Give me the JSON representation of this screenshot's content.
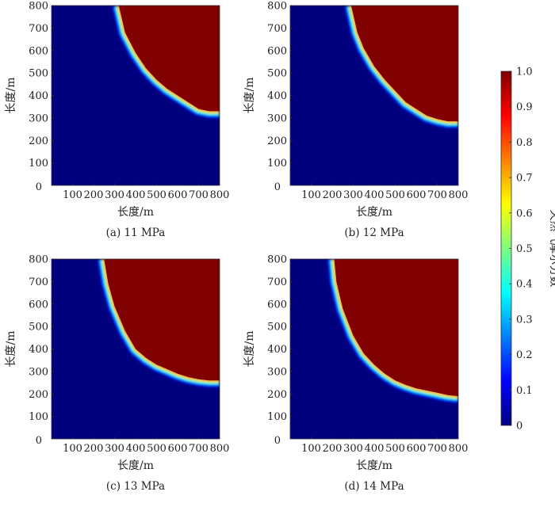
{
  "chart_data": [
    {
      "type": "heatmap",
      "caption": "(a) 11 MPa",
      "xlabel": "长度/m",
      "ylabel": "长度/m",
      "xlim": [
        0,
        800
      ],
      "ylim": [
        0,
        800
      ],
      "xticks": [
        "100",
        "200",
        "300",
        "400",
        "500",
        "600",
        "700",
        "800"
      ],
      "yticks": [
        "100",
        "200",
        "300",
        "400",
        "500",
        "600",
        "700",
        "800"
      ],
      "origin_label": "0",
      "front": {
        "x": [
          320,
          350,
          400,
          450,
          500,
          550,
          600,
          650,
          700,
          750,
          800
        ],
        "y": [
          800,
          680,
          590,
          520,
          470,
          430,
          400,
          370,
          340,
          330,
          330
        ]
      }
    },
    {
      "type": "heatmap",
      "caption": "(b) 12 MPa",
      "xlabel": "长度/m",
      "ylabel": "长度/m",
      "xlim": [
        0,
        800
      ],
      "ylim": [
        0,
        800
      ],
      "xticks": [
        "100",
        "200",
        "300",
        "400",
        "500",
        "600",
        "700",
        "800"
      ],
      "yticks": [
        "100",
        "200",
        "300",
        "400",
        "500",
        "600",
        "700",
        "800"
      ],
      "origin_label": "0",
      "front": {
        "x": [
          290,
          320,
          350,
          400,
          450,
          500,
          550,
          600,
          650,
          700,
          750,
          800
        ],
        "y": [
          800,
          680,
          610,
          530,
          470,
          420,
          370,
          340,
          310,
          295,
          285,
          285
        ]
      }
    },
    {
      "type": "heatmap",
      "caption": "(c) 13 MPa",
      "xlabel": "长度/m",
      "ylabel": "长度/m",
      "xlim": [
        0,
        800
      ],
      "ylim": [
        0,
        800
      ],
      "xticks": [
        "100",
        "200",
        "300",
        "400",
        "500",
        "600",
        "700",
        "800"
      ],
      "yticks": [
        "100",
        "200",
        "300",
        "400",
        "500",
        "600",
        "700",
        "800"
      ],
      "origin_label": "0",
      "front": {
        "x": [
          250,
          270,
          300,
          350,
          400,
          450,
          500,
          550,
          600,
          650,
          700,
          750,
          800
        ],
        "y": [
          800,
          690,
          590,
          480,
          400,
          360,
          330,
          310,
          290,
          275,
          265,
          260,
          260
        ]
      }
    },
    {
      "type": "heatmap",
      "caption": "(d) 14 MPa",
      "xlabel": "长度/m",
      "ylabel": "长度/m",
      "xlim": [
        0,
        800
      ],
      "ylim": [
        0,
        800
      ],
      "xticks": [
        "100",
        "200",
        "300",
        "400",
        "500",
        "600",
        "700",
        "800"
      ],
      "yticks": [
        "100",
        "200",
        "300",
        "400",
        "500",
        "600",
        "700",
        "800"
      ],
      "origin_label": "0",
      "front": {
        "x": [
          210,
          220,
          250,
          300,
          350,
          400,
          450,
          500,
          550,
          600,
          650,
          700,
          750,
          800
        ],
        "y": [
          800,
          700,
          580,
          460,
          380,
          330,
          290,
          260,
          240,
          225,
          215,
          205,
          195,
          190
        ]
      }
    },
    {
      "type": "colorbar",
      "label": "天然气摩尔分数",
      "ticks": [
        "0",
        "0.1",
        "0.2",
        "0.3",
        "0.4",
        "0.5",
        "0.6",
        "0.7",
        "0.8",
        "0.9",
        "1.0"
      ],
      "range": [
        0,
        1
      ],
      "colormap": "jet",
      "colors": [
        "#00007f",
        "#0000ff",
        "#007fff",
        "#00ffff",
        "#7fff7f",
        "#ffff00",
        "#ff7f00",
        "#ff0000",
        "#7f0000"
      ]
    }
  ]
}
